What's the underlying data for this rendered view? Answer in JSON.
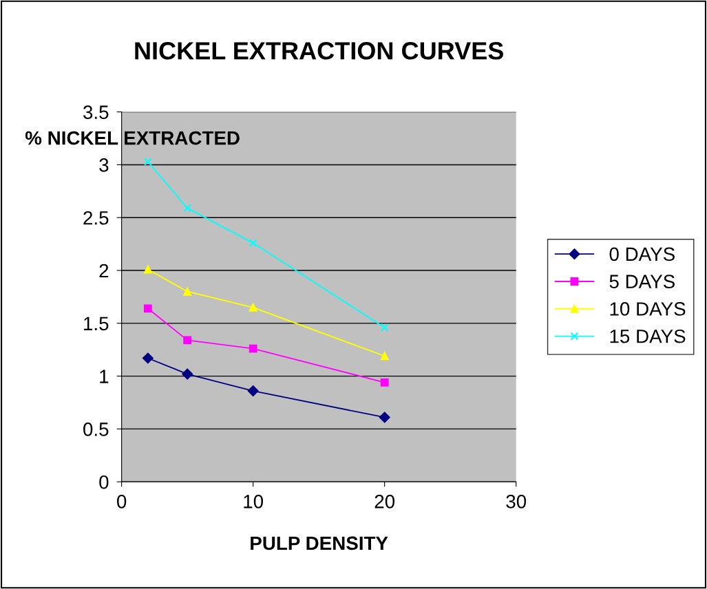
{
  "chart_data": {
    "type": "line",
    "title": "NICKEL EXTRACTION CURVES",
    "xlabel": "PULP DENSITY",
    "ylabel": "% NICKEL EXTRACTED",
    "x": [
      2,
      5,
      10,
      20
    ],
    "series": [
      {
        "name": "0 DAYS",
        "color": "#000080",
        "marker": "diamond",
        "values": [
          1.17,
          1.02,
          0.86,
          0.61
        ]
      },
      {
        "name": "5 DAYS",
        "color": "#ff00ff",
        "marker": "square",
        "values": [
          1.64,
          1.34,
          1.26,
          0.94
        ]
      },
      {
        "name": "10 DAYS",
        "color": "#ffff00",
        "marker": "triangle",
        "values": [
          2.01,
          1.8,
          1.65,
          1.19
        ]
      },
      {
        "name": "15 DAYS",
        "color": "#00ffff",
        "marker": "cross",
        "values": [
          3.03,
          2.59,
          2.26,
          1.46
        ]
      }
    ],
    "xlim": [
      0,
      30
    ],
    "xticks": [
      0,
      10,
      20,
      30
    ],
    "ylim": [
      0,
      3.5
    ],
    "yticks": [
      0,
      0.5,
      1,
      1.5,
      2,
      2.5,
      3,
      3.5
    ],
    "grid": "y",
    "legend": "right",
    "line_style": "solid"
  }
}
